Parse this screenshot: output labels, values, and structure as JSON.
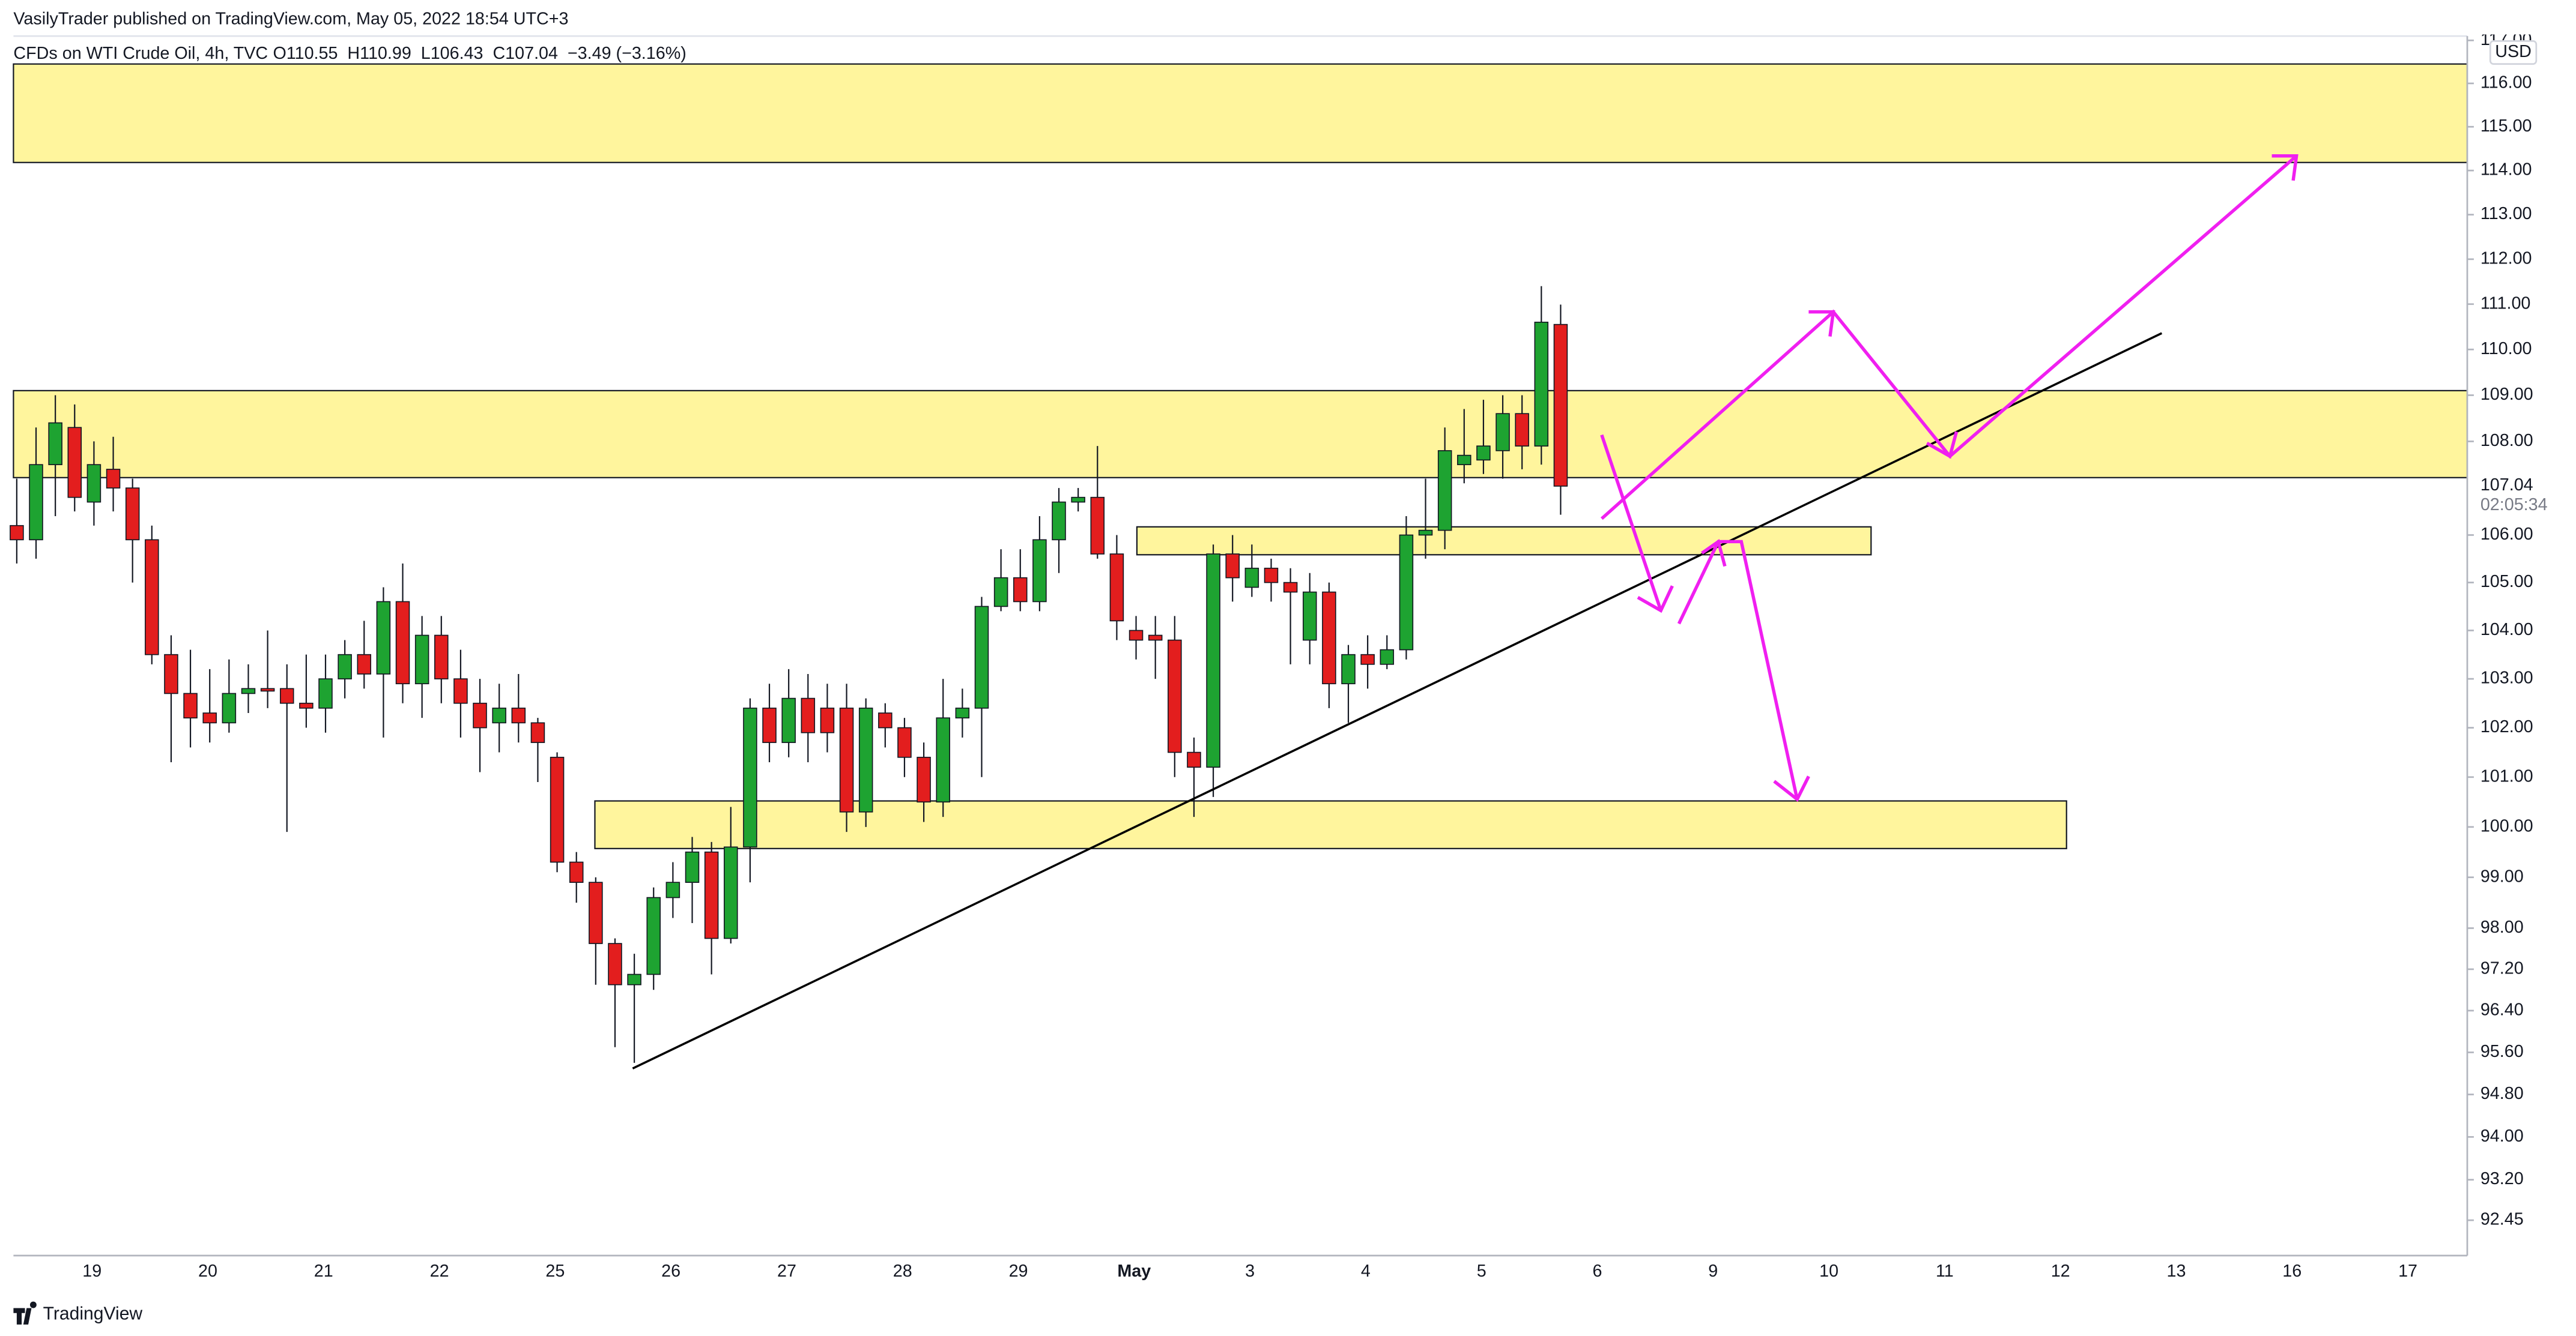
{
  "header": {
    "publisher": "VasilyTrader published on TradingView.com, May 05, 2022 18:54 UTC+3",
    "symbol": "CFDs on WTI Crude Oil, 4h, TVC",
    "ohlc_text": "O110.55  H110.99  L106.43  C107.04  −3.49 (−3.16%)",
    "currency": "USD",
    "brand": "TradingView"
  },
  "chart_data": {
    "type": "candlestick",
    "log_scale": true,
    "up_color": "#1ea331",
    "down_color": "#e31e1e",
    "last_price_label": "107.04",
    "countdown": "02:05:34",
    "xtick_labels": [
      "19",
      "20",
      "21",
      "22",
      "25",
      "26",
      "27",
      "28",
      "29",
      "May",
      "3",
      "4",
      "5",
      "6",
      "9",
      "10",
      "11",
      "12",
      "13",
      "16",
      "17"
    ],
    "ylim": [
      91.8,
      117.1
    ],
    "yticks": [
      {
        "value": 117,
        "label": "117.00"
      },
      {
        "value": 116,
        "label": "116.00"
      },
      {
        "value": 115,
        "label": "115.00"
      },
      {
        "value": 114,
        "label": "114.00"
      },
      {
        "value": 113,
        "label": "113.00"
      },
      {
        "value": 112,
        "label": "112.00"
      },
      {
        "value": 111,
        "label": "111.00"
      },
      {
        "value": 110,
        "label": "110.00"
      },
      {
        "value": 109,
        "label": "109.00"
      },
      {
        "value": 108,
        "label": "108.00"
      },
      {
        "value": 106,
        "label": "106.00"
      },
      {
        "value": 105,
        "label": "105.00"
      },
      {
        "value": 104,
        "label": "104.00"
      },
      {
        "value": 103,
        "label": "103.00"
      },
      {
        "value": 102,
        "label": "102.00"
      },
      {
        "value": 101,
        "label": "101.00"
      },
      {
        "value": 100,
        "label": "100.00"
      },
      {
        "value": 99,
        "label": "99.00"
      },
      {
        "value": 98,
        "label": "98.00"
      },
      {
        "value": 97.2,
        "label": "97.20"
      },
      {
        "value": 96.4,
        "label": "96.40"
      },
      {
        "value": 95.6,
        "label": "95.60"
      },
      {
        "value": 94.8,
        "label": "94.80"
      },
      {
        "value": 94,
        "label": "94.00"
      },
      {
        "value": 93.2,
        "label": "93.20"
      },
      {
        "value": 92.45,
        "label": "92.45"
      }
    ],
    "open": [
      106.2,
      105.9,
      107.5,
      108.3,
      106.7,
      107.4,
      107.0,
      105.9,
      103.5,
      102.7,
      102.3,
      102.1,
      102.7,
      102.8,
      102.8,
      102.5,
      102.4,
      103.0,
      103.5,
      103.1,
      104.6,
      102.9,
      103.9,
      103.0,
      102.5,
      102.1,
      102.4,
      102.1,
      101.4,
      99.3,
      98.9,
      97.7,
      96.9,
      97.1,
      98.6,
      98.9,
      99.5,
      97.8,
      99.6,
      102.4,
      101.7,
      102.6,
      102.4,
      102.4,
      100.3,
      102.3,
      102.0,
      101.4,
      100.5,
      102.2,
      102.4,
      104.5,
      105.1,
      104.6,
      105.9,
      106.7,
      106.8,
      105.6,
      104.0,
      103.9,
      103.8,
      101.5,
      101.2,
      105.6,
      104.9,
      105.3,
      105.0,
      103.8,
      104.8,
      102.9,
      103.5,
      103.3,
      103.6,
      106.0,
      106.1,
      107.5,
      107.6,
      107.8,
      108.6,
      107.9,
      110.55
    ],
    "high": [
      107.2,
      108.3,
      109.0,
      108.8,
      108.0,
      108.1,
      107.2,
      106.2,
      103.9,
      103.6,
      103.2,
      103.4,
      103.3,
      104.0,
      103.3,
      103.5,
      103.5,
      103.8,
      104.2,
      104.9,
      105.4,
      104.3,
      104.3,
      103.6,
      103.0,
      102.9,
      103.1,
      102.2,
      101.5,
      99.5,
      99.0,
      97.8,
      97.5,
      98.8,
      99.3,
      99.8,
      99.7,
      100.4,
      102.6,
      102.9,
      103.2,
      103.1,
      102.9,
      102.9,
      102.6,
      102.5,
      102.2,
      101.7,
      103.0,
      102.8,
      104.7,
      105.7,
      105.7,
      106.4,
      107.0,
      107.0,
      107.9,
      106.0,
      104.3,
      104.3,
      104.3,
      101.8,
      105.8,
      106.0,
      105.8,
      105.5,
      105.3,
      105.2,
      105.0,
      103.7,
      103.9,
      103.9,
      106.4,
      107.2,
      108.3,
      108.7,
      108.9,
      109.0,
      109.0,
      111.4,
      110.99
    ],
    "low": [
      105.4,
      105.5,
      106.4,
      106.5,
      106.2,
      106.5,
      105.0,
      103.3,
      101.3,
      101.6,
      101.7,
      101.9,
      102.3,
      102.4,
      99.9,
      102.0,
      101.9,
      102.6,
      102.8,
      101.8,
      102.5,
      102.2,
      102.5,
      101.8,
      101.1,
      101.5,
      101.7,
      100.9,
      99.1,
      98.5,
      96.9,
      95.7,
      95.4,
      96.8,
      98.2,
      98.1,
      97.1,
      97.7,
      98.9,
      101.3,
      101.4,
      101.3,
      101.5,
      99.9,
      100.0,
      101.6,
      101.0,
      100.1,
      100.2,
      101.8,
      101.0,
      104.4,
      104.4,
      104.4,
      105.2,
      106.5,
      105.5,
      103.8,
      103.4,
      103.0,
      101.0,
      100.2,
      100.6,
      104.6,
      104.7,
      104.6,
      103.3,
      103.3,
      102.4,
      102.1,
      102.8,
      103.2,
      103.4,
      105.5,
      105.7,
      107.1,
      107.3,
      107.2,
      107.4,
      107.5,
      106.43
    ],
    "close": [
      105.9,
      107.5,
      108.4,
      106.8,
      107.5,
      107.0,
      105.9,
      103.5,
      102.7,
      102.2,
      102.1,
      102.7,
      102.8,
      102.75,
      102.5,
      102.4,
      103.0,
      103.5,
      103.1,
      104.6,
      102.9,
      103.9,
      103.0,
      102.5,
      102.0,
      102.4,
      102.1,
      101.7,
      99.3,
      98.9,
      97.7,
      96.9,
      97.1,
      98.6,
      98.9,
      99.5,
      97.8,
      99.6,
      102.4,
      101.7,
      102.6,
      101.9,
      101.9,
      100.3,
      102.4,
      102.0,
      101.4,
      100.5,
      102.2,
      102.4,
      104.5,
      105.1,
      104.6,
      105.9,
      106.7,
      106.8,
      105.6,
      104.2,
      103.8,
      103.8,
      101.5,
      101.2,
      105.6,
      105.1,
      105.3,
      105.0,
      104.8,
      104.8,
      102.9,
      103.5,
      103.3,
      103.6,
      106.0,
      106.1,
      107.8,
      107.7,
      107.9,
      108.6,
      107.9,
      110.6,
      107.04
    ]
  }
}
